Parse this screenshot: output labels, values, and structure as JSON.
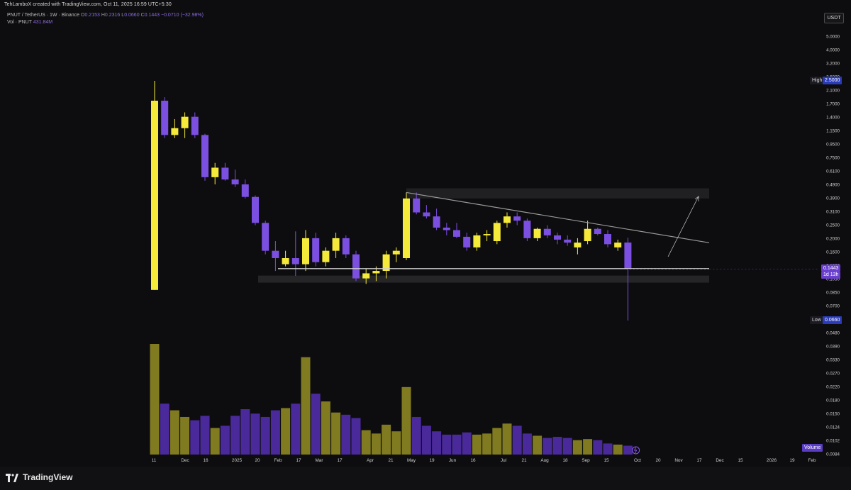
{
  "header": {
    "creator_line": "TehLamboX created with TradingView.com, Oct 11, 2025 16:59 UTC+5:30",
    "symbol_line": "PNUT / TetherUS · 1W · Binance",
    "ohlc": {
      "o_label": "O",
      "o": "0.2153",
      "h_label": "H",
      "h": "0.2316",
      "l_label": "L",
      "l": "0.0660",
      "c_label": "C",
      "c": "0.1443",
      "change": "−0.0710 (−32.98%)"
    },
    "vol_label": "Vol · PNUT",
    "vol_value": "431.84M"
  },
  "currency_button": "USDT",
  "price_tags": {
    "high_label": "High",
    "high_value": "2.5000",
    "low_label": "Low",
    "low_value": "0.0660",
    "current_value": "0.1443",
    "current_countdown": "1d 13h",
    "volume_label": "Volume"
  },
  "brand": {
    "name": "TradingView"
  },
  "colors": {
    "bull": "#f5ea3a",
    "bear": "#7b4fe0",
    "vol_bull": "#807a20",
    "vol_bear": "#4a2a9a",
    "background": "#0d0d0f",
    "trendline": "#9a9a9a"
  },
  "chart_data": {
    "type": "candlestick",
    "interval": "1W",
    "y_scale": "log",
    "y_ticks": [
      "5.0000",
      "4.0000",
      "3.2000",
      "2.5000",
      "2.1000",
      "1.7000",
      "1.4000",
      "1.1500",
      "0.9500",
      "0.7500",
      "0.6100",
      "0.4900",
      "0.3900",
      "0.3100",
      "0.2500",
      "0.2000",
      "0.1600",
      "0.1300",
      "0.1050",
      "0.0850",
      "0.0700",
      "0.0580",
      "0.0480",
      "0.0390",
      "0.0330",
      "0.0270",
      "0.0220",
      "0.0180",
      "0.0150",
      "0.0124",
      "0.0102",
      "0.0084"
    ],
    "x_ticks": [
      "11",
      "Dec",
      "16",
      "2025",
      "20",
      "Feb",
      "17",
      "Mar",
      "17",
      "Apr",
      "21",
      "May",
      "19",
      "Jun",
      "16",
      "Jul",
      "21",
      "Aug",
      "18",
      "Sep",
      "15",
      "Oct",
      "20",
      "Nov",
      "17",
      "Dec",
      "15",
      "2026",
      "19",
      "Feb"
    ],
    "candles": [
      {
        "o": 0.105,
        "h": 2.5,
        "l": 0.105,
        "c": 1.85
      },
      {
        "o": 1.85,
        "h": 1.95,
        "l": 1.05,
        "c": 1.1
      },
      {
        "o": 1.1,
        "h": 1.4,
        "l": 1.05,
        "c": 1.22
      },
      {
        "o": 1.22,
        "h": 1.55,
        "l": 1.05,
        "c": 1.45
      },
      {
        "o": 1.45,
        "h": 1.55,
        "l": 1.05,
        "c": 1.1
      },
      {
        "o": 1.1,
        "h": 1.12,
        "l": 0.55,
        "c": 0.58
      },
      {
        "o": 0.58,
        "h": 0.72,
        "l": 0.52,
        "c": 0.67
      },
      {
        "o": 0.67,
        "h": 0.72,
        "l": 0.55,
        "c": 0.56
      },
      {
        "o": 0.56,
        "h": 0.65,
        "l": 0.5,
        "c": 0.52
      },
      {
        "o": 0.52,
        "h": 0.56,
        "l": 0.42,
        "c": 0.43
      },
      {
        "o": 0.43,
        "h": 0.44,
        "l": 0.28,
        "c": 0.29
      },
      {
        "o": 0.29,
        "h": 0.3,
        "l": 0.18,
        "c": 0.19
      },
      {
        "o": 0.19,
        "h": 0.22,
        "l": 0.14,
        "c": 0.17
      },
      {
        "o": 0.155,
        "h": 0.19,
        "l": 0.15,
        "c": 0.17
      },
      {
        "o": 0.17,
        "h": 0.255,
        "l": 0.13,
        "c": 0.155
      },
      {
        "o": 0.155,
        "h": 0.26,
        "l": 0.14,
        "c": 0.23
      },
      {
        "o": 0.23,
        "h": 0.25,
        "l": 0.15,
        "c": 0.16
      },
      {
        "o": 0.16,
        "h": 0.2,
        "l": 0.15,
        "c": 0.19
      },
      {
        "o": 0.19,
        "h": 0.25,
        "l": 0.17,
        "c": 0.23
      },
      {
        "o": 0.23,
        "h": 0.24,
        "l": 0.17,
        "c": 0.18
      },
      {
        "o": 0.18,
        "h": 0.19,
        "l": 0.12,
        "c": 0.125
      },
      {
        "o": 0.125,
        "h": 0.145,
        "l": 0.115,
        "c": 0.135
      },
      {
        "o": 0.135,
        "h": 0.15,
        "l": 0.12,
        "c": 0.14
      },
      {
        "o": 0.14,
        "h": 0.19,
        "l": 0.125,
        "c": 0.18
      },
      {
        "o": 0.18,
        "h": 0.2,
        "l": 0.16,
        "c": 0.19
      },
      {
        "o": 0.17,
        "h": 0.46,
        "l": 0.165,
        "c": 0.42
      },
      {
        "o": 0.42,
        "h": 0.46,
        "l": 0.33,
        "c": 0.34
      },
      {
        "o": 0.34,
        "h": 0.38,
        "l": 0.31,
        "c": 0.32
      },
      {
        "o": 0.32,
        "h": 0.36,
        "l": 0.26,
        "c": 0.27
      },
      {
        "o": 0.27,
        "h": 0.29,
        "l": 0.24,
        "c": 0.26
      },
      {
        "o": 0.26,
        "h": 0.29,
        "l": 0.23,
        "c": 0.235
      },
      {
        "o": 0.235,
        "h": 0.25,
        "l": 0.19,
        "c": 0.2
      },
      {
        "o": 0.2,
        "h": 0.25,
        "l": 0.19,
        "c": 0.24
      },
      {
        "o": 0.24,
        "h": 0.26,
        "l": 0.22,
        "c": 0.245
      },
      {
        "o": 0.22,
        "h": 0.3,
        "l": 0.21,
        "c": 0.29
      },
      {
        "o": 0.29,
        "h": 0.34,
        "l": 0.27,
        "c": 0.32
      },
      {
        "o": 0.32,
        "h": 0.34,
        "l": 0.28,
        "c": 0.3
      },
      {
        "o": 0.3,
        "h": 0.31,
        "l": 0.22,
        "c": 0.23
      },
      {
        "o": 0.23,
        "h": 0.27,
        "l": 0.22,
        "c": 0.265
      },
      {
        "o": 0.265,
        "h": 0.28,
        "l": 0.23,
        "c": 0.24
      },
      {
        "o": 0.24,
        "h": 0.25,
        "l": 0.21,
        "c": 0.225
      },
      {
        "o": 0.225,
        "h": 0.24,
        "l": 0.205,
        "c": 0.215
      },
      {
        "o": 0.2,
        "h": 0.23,
        "l": 0.18,
        "c": 0.215
      },
      {
        "o": 0.22,
        "h": 0.3,
        "l": 0.21,
        "c": 0.265
      },
      {
        "o": 0.265,
        "h": 0.27,
        "l": 0.24,
        "c": 0.245
      },
      {
        "o": 0.245,
        "h": 0.26,
        "l": 0.2,
        "c": 0.21
      },
      {
        "o": 0.2,
        "h": 0.225,
        "l": 0.19,
        "c": 0.215
      },
      {
        "o": 0.2153,
        "h": 0.2316,
        "l": 0.066,
        "c": 0.1443
      }
    ],
    "volume": [
      100,
      46,
      40,
      34,
      31,
      35,
      24,
      26,
      35,
      41,
      37,
      34,
      40,
      42,
      46,
      88,
      55,
      48,
      38,
      36,
      33,
      22,
      19,
      27,
      21,
      61,
      34,
      26,
      21,
      18,
      18,
      20,
      18,
      19,
      24,
      28,
      26,
      19,
      17,
      15,
      16,
      15,
      13,
      14,
      13,
      10,
      9,
      8
    ],
    "volume_unit": "relative",
    "annotations": {
      "support_level": 0.145,
      "support_zone": [
        0.125,
        0.135
      ],
      "resistance_zone": [
        0.42,
        0.49
      ],
      "descending_trendline": [
        [
          0.46,
          25
        ],
        [
          0.215,
          55
        ]
      ],
      "projection_arrow": "up-right"
    }
  }
}
